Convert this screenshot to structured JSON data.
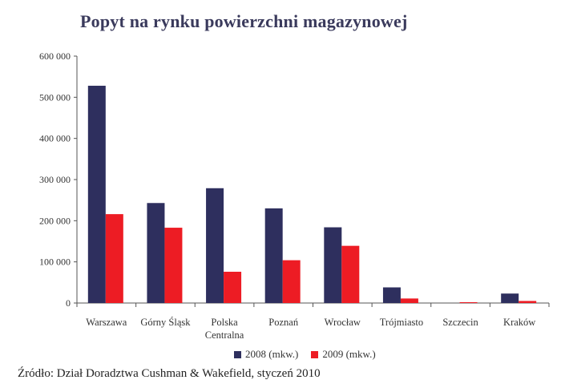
{
  "chart_data": {
    "type": "bar",
    "title": "Popyt na rynku powierzchni magazynowej",
    "categories": [
      [
        "Warszawa"
      ],
      [
        "Górny Śląsk"
      ],
      [
        "Polska",
        "Centralna"
      ],
      [
        "Poznań"
      ],
      [
        "Wrocław"
      ],
      [
        "Trójmiasto"
      ],
      [
        "Szczecin"
      ],
      [
        "Kraków"
      ]
    ],
    "series": [
      {
        "name": "2008 (mkw.)",
        "color": "#2e2f5e",
        "values": [
          528000,
          243000,
          279000,
          230000,
          184000,
          38000,
          0,
          23000
        ]
      },
      {
        "name": "2009 (mkw.)",
        "color": "#ed1c24",
        "values": [
          216000,
          183000,
          76000,
          104000,
          139000,
          11000,
          2000,
          5000
        ]
      }
    ],
    "ylim": [
      0,
      600000
    ],
    "yticks": [
      0,
      100000,
      200000,
      300000,
      400000,
      500000,
      600000
    ],
    "ytick_labels": [
      "0",
      "100 000",
      "200 000",
      "300 000",
      "400 000",
      "500 000",
      "600 000"
    ],
    "legend_position": "bottom",
    "grid": false
  },
  "source": "Źródło: Dział Doradztwa Cushman & Wakefield, styczeń 2010"
}
